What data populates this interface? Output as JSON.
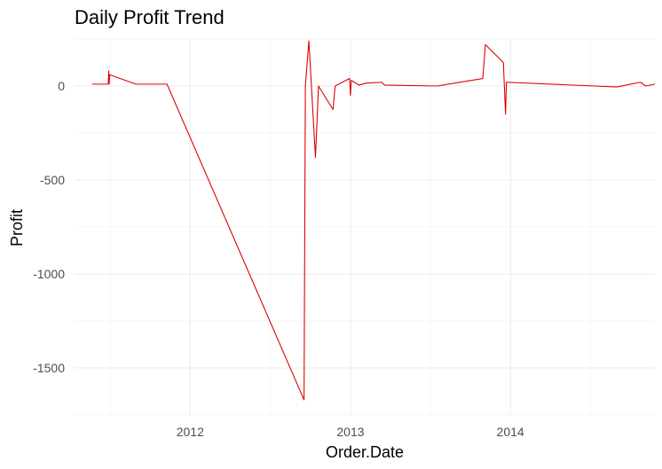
{
  "chart_data": {
    "type": "line",
    "title": "Daily Profit Trend",
    "xlabel": "Order.Date",
    "ylabel": "Profit",
    "xlim": [
      "2011-04-12",
      "2014-11-27"
    ],
    "ylim": [
      -1750,
      250
    ],
    "x_ticks": [
      {
        "label": "2012",
        "date": "2012-01-01"
      },
      {
        "label": "2013",
        "date": "2013-01-01"
      },
      {
        "label": "2014",
        "date": "2014-01-01"
      }
    ],
    "y_ticks": [
      {
        "label": "0",
        "value": 0
      },
      {
        "label": "-500",
        "value": -500
      },
      {
        "label": "-1000",
        "value": -1000
      },
      {
        "label": "-1500",
        "value": -1500
      }
    ],
    "grid": true,
    "line_color": "#e00000",
    "series": [
      {
        "points": [
          [
            "2011-05-22",
            10
          ],
          [
            "2011-06-28",
            10
          ],
          [
            "2011-06-29",
            80
          ],
          [
            "2011-06-30",
            10
          ],
          [
            "2011-07-01",
            60
          ],
          [
            "2011-08-30",
            10
          ],
          [
            "2011-10-15",
            10
          ],
          [
            "2011-11-02",
            10
          ],
          [
            "2011-11-09",
            10
          ],
          [
            "2012-09-17",
            -1670
          ],
          [
            "2012-09-20",
            0
          ],
          [
            "2012-09-28",
            240
          ],
          [
            "2012-10-13",
            -380
          ],
          [
            "2012-10-20",
            0
          ],
          [
            "2012-11-22",
            -125
          ],
          [
            "2012-11-27",
            0
          ],
          [
            "2012-12-30",
            40
          ],
          [
            "2013-01-01",
            -50
          ],
          [
            "2013-01-03",
            30
          ],
          [
            "2013-01-20",
            5
          ],
          [
            "2013-02-06",
            15
          ],
          [
            "2013-03-13",
            20
          ],
          [
            "2013-03-20",
            5
          ],
          [
            "2013-07-18",
            0
          ],
          [
            "2013-10-30",
            40
          ],
          [
            "2013-11-05",
            220
          ],
          [
            "2013-12-16",
            125
          ],
          [
            "2013-12-21",
            -150
          ],
          [
            "2013-12-23",
            20
          ],
          [
            "2014-09-01",
            -5
          ],
          [
            "2014-10-25",
            20
          ],
          [
            "2014-11-06",
            0
          ],
          [
            "2014-11-27",
            10
          ]
        ]
      }
    ]
  }
}
